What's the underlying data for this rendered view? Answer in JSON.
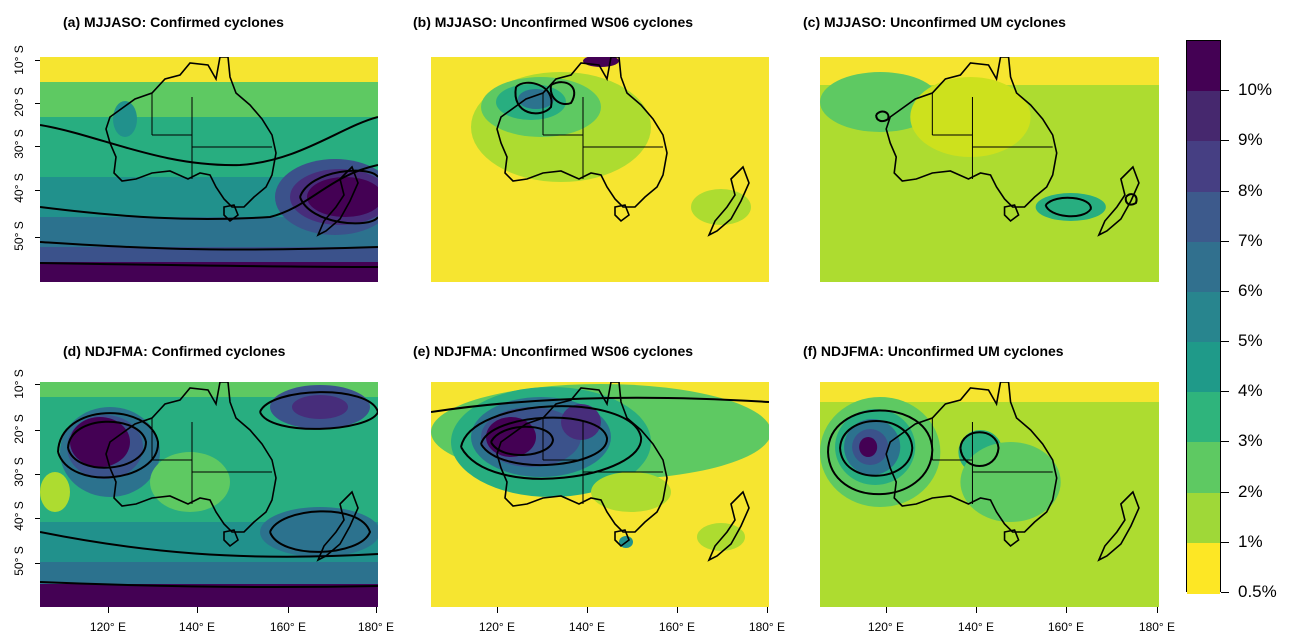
{
  "panels": [
    {
      "title": "(a) MJJASO: Confirmed cyclones"
    },
    {
      "title": "(b) MJJASO: Unconfirmed WS06 cyclones"
    },
    {
      "title": "(c) MJJASO: Unconfirmed UM cyclones"
    },
    {
      "title": "(d) NDJFMA: Confirmed cyclones"
    },
    {
      "title": "(e) NDJFMA: Unconfirmed WS06 cyclones"
    },
    {
      "title": "(f) NDJFMA: Unconfirmed UM cyclones"
    }
  ],
  "y_tick_labels": [
    "10° S",
    "20° S",
    "30° S",
    "40° S",
    "50° S"
  ],
  "x_tick_labels": [
    "120° E",
    "140° E",
    "160° E",
    "180° E"
  ],
  "colorbar": {
    "labels": [
      "10%",
      "9%",
      "8%",
      "7%",
      "6%",
      "5%",
      "4%",
      "3%",
      "2%",
      "1%",
      "0.5%"
    ],
    "colors": [
      "#440154",
      "#472d7b",
      "#3b528b",
      "#2c728e",
      "#21918c",
      "#28ae80",
      "#5ec962",
      "#addc30",
      "#cde11d",
      "#fde725"
    ],
    "top_colors": [
      "#440154",
      "#46286e",
      "#463f83",
      "#3d5a8c",
      "#31708e",
      "#28858e",
      "#1f9a89",
      "#2fb47c",
      "#5ec962",
      "#9fd838",
      "#fde725"
    ]
  },
  "colors": {
    "land_outline": "#000000",
    "low": "#f6e530",
    "high": "#440154"
  }
}
